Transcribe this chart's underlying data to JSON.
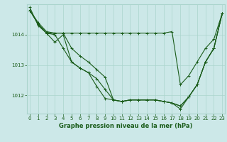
{
  "xlabel": "Graphe pression niveau de la mer (hPa)",
  "bg_color": "#cce8e8",
  "grid_color": "#aad4cc",
  "line_color": "#1a5c1a",
  "x_ticks": [
    0,
    1,
    2,
    3,
    4,
    5,
    6,
    7,
    8,
    9,
    10,
    11,
    12,
    13,
    14,
    15,
    16,
    17,
    18,
    19,
    20,
    21,
    22,
    23
  ],
  "y_ticks": [
    1012,
    1013,
    1014
  ],
  "ylim": [
    1011.4,
    1015.0
  ],
  "xlim": [
    -0.3,
    23.3
  ],
  "line1": [
    1014.8,
    1014.4,
    1014.1,
    1014.05,
    1014.05,
    1014.05,
    1014.05,
    1014.05,
    1014.05,
    1014.05,
    1014.05,
    1014.05,
    1014.05,
    1014.05,
    1014.05,
    1014.05,
    1014.05,
    1014.1,
    1012.35,
    1012.65,
    1013.1,
    1013.55,
    1013.85,
    1014.7
  ],
  "line2": [
    1014.8,
    1014.35,
    1014.05,
    1014.05,
    1014.05,
    1013.55,
    1013.3,
    1013.1,
    1012.85,
    1012.6,
    1011.85,
    1011.8,
    1011.85,
    1011.85,
    1011.85,
    1011.85,
    1011.8,
    1011.75,
    1011.65,
    1011.95,
    1012.35,
    1013.1,
    1013.55,
    1014.7
  ],
  "line3": [
    1014.8,
    1014.35,
    1014.05,
    1013.75,
    1014.0,
    1013.1,
    1012.9,
    1012.75,
    1012.55,
    1012.2,
    1011.85,
    1011.8,
    1011.85,
    1011.85,
    1011.85,
    1011.85,
    1011.8,
    1011.75,
    1011.65,
    1011.95,
    1012.35,
    1013.1,
    1013.55,
    1014.7
  ],
  "line4": [
    1014.9,
    1014.3,
    1014.05,
    1014.0,
    1013.55,
    1013.1,
    1012.9,
    1012.75,
    1012.3,
    1011.9,
    1011.85,
    1011.8,
    1011.85,
    1011.85,
    1011.85,
    1011.85,
    1011.8,
    1011.75,
    1011.55,
    1011.95,
    1012.35,
    1013.1,
    1013.55,
    1014.7
  ],
  "marker_size": 3.0,
  "linewidth": 0.8,
  "tick_fontsize": 5.0,
  "label_fontsize": 6.0
}
